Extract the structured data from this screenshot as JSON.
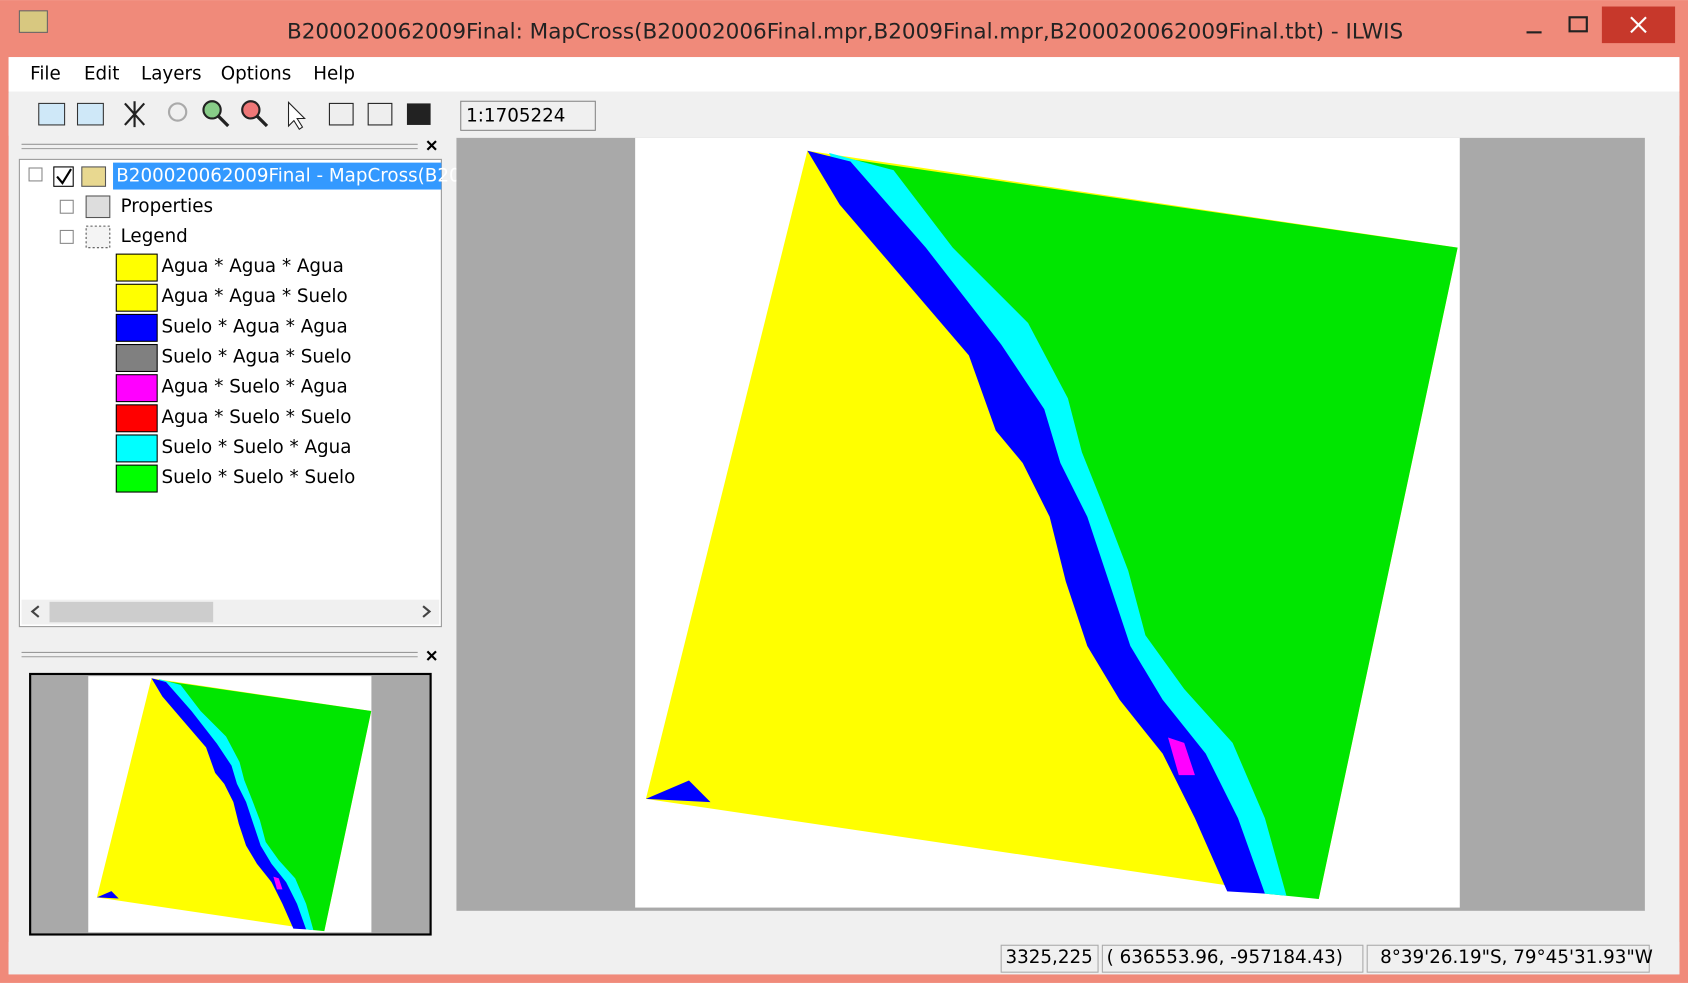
{
  "window": {
    "title": "B200020062009Final: MapCross(B20002006Final.mpr,B2009Final.mpr,B200020062009Final.tbt) - ILWIS"
  },
  "menu": [
    "File",
    "Edit",
    "Layers",
    "Options",
    "Help"
  ],
  "toolbar": {
    "scale": "1:1705224"
  },
  "tree": {
    "root": "B200020062009Final - MapCross(B20(",
    "properties": "Properties",
    "legend": "Legend",
    "legend_items": [
      {
        "label": "Agua * Agua * Agua",
        "color": "#ffff00"
      },
      {
        "label": "Agua * Agua * Suelo",
        "color": "#ffff00"
      },
      {
        "label": "Suelo * Agua * Agua",
        "color": "#0000ff"
      },
      {
        "label": "Suelo * Agua * Suelo",
        "color": "#808080"
      },
      {
        "label": "Agua * Suelo * Agua",
        "color": "#ff00ff"
      },
      {
        "label": "Agua * Suelo * Suelo",
        "color": "#ff0000"
      },
      {
        "label": "Suelo * Suelo * Agua",
        "color": "#00ffff"
      },
      {
        "label": "Suelo * Suelo * Suelo",
        "color": "#00ff00"
      }
    ]
  },
  "status": {
    "pixel": "3325,225",
    "coords": "(  636553.96,  -957184.43)",
    "latlon": "8°39'26.19\"S, 79°45'31.93\"W"
  }
}
